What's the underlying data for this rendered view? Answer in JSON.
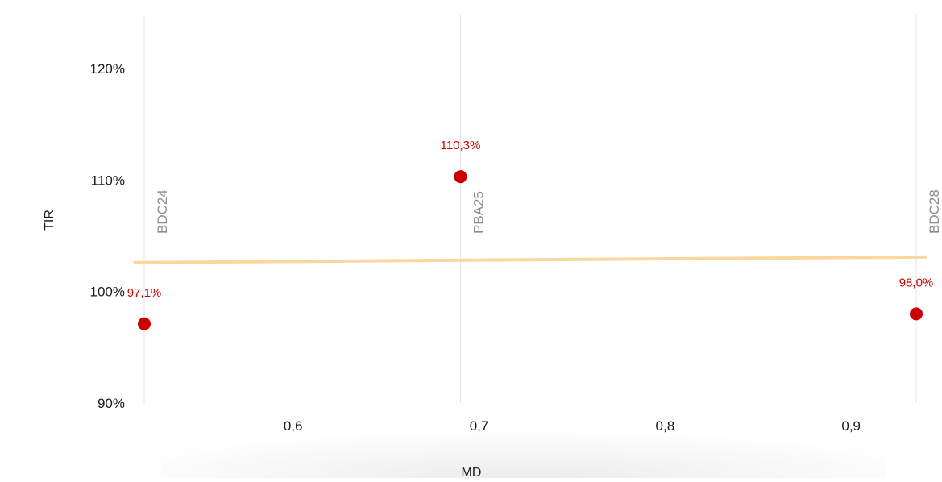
{
  "chart_data": {
    "type": "scatter",
    "title": "",
    "xlabel": "MD",
    "ylabel": "TIR",
    "xlim": [
      0.52,
      0.935
    ],
    "ylim": [
      90,
      125
    ],
    "x_ticks": [
      0.6,
      0.7,
      0.8,
      0.9
    ],
    "x_tick_labels": [
      "0,6",
      "0,7",
      "0,8",
      "0,9"
    ],
    "y_ticks": [
      90,
      100,
      110,
      120
    ],
    "y_tick_labels": [
      "90%",
      "100%",
      "110%",
      "120%"
    ],
    "grid": false,
    "legend": "none",
    "series": [
      {
        "points": [
          {
            "x": 0.52,
            "y": 97.1,
            "label": "BDC24",
            "value_label": "97,1%"
          },
          {
            "x": 0.69,
            "y": 110.3,
            "label": "PBA25",
            "value_label": "110,3%"
          },
          {
            "x": 0.935,
            "y": 98.0,
            "label": "BDC28",
            "value_label": "98,0%"
          }
        ]
      }
    ],
    "trendline": {
      "x": [
        0.515,
        0.94
      ],
      "y": [
        102.6,
        103.1
      ]
    },
    "colors": {
      "point": "#cc0000",
      "value_label": "#cc0000",
      "trendline": "#fbd7a0",
      "ref_line": "#e4e4e4",
      "ref_label": "#8c8c8c",
      "axis_text": "#1a1a1a"
    }
  }
}
